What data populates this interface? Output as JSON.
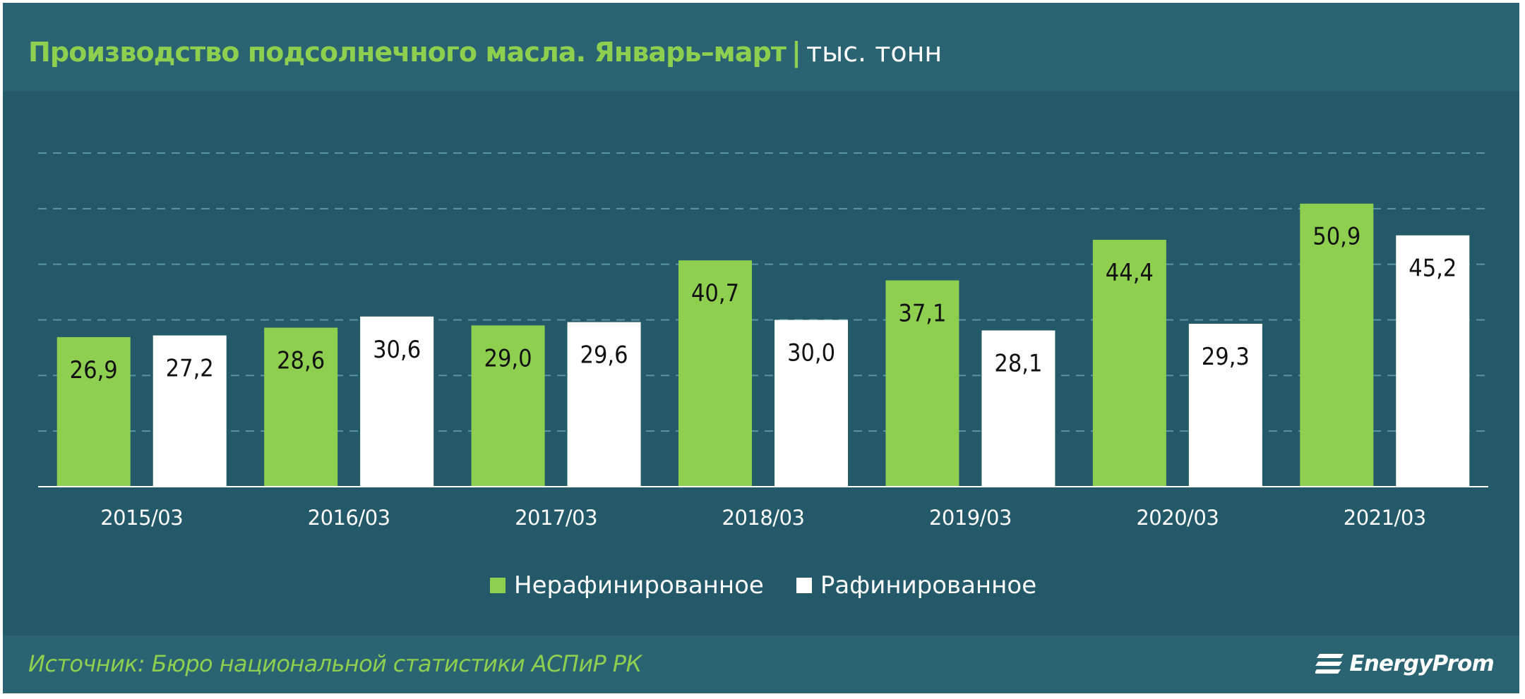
{
  "title": "Производство подсолнечного масла. Январь–март",
  "title_separator": "|",
  "unit": "тыс. тонн",
  "source": "Источник: Бюро национальной статистики АСПиР РК",
  "brand": "EnergyProm",
  "colors": {
    "background": "#235968",
    "header_band": "#2a6473",
    "title_accent": "#8fcf4f",
    "unrefined": "#8fcf4f",
    "refined": "#ffffff",
    "grid": "#5a95a3"
  },
  "chart_data": {
    "type": "bar",
    "categories": [
      "2015/03",
      "2016/03",
      "2017/03",
      "2018/03",
      "2019/03",
      "2020/03",
      "2021/03"
    ],
    "series": [
      {
        "name": "Нерафинированное",
        "color": "#8fcf4f",
        "values": [
          26.9,
          28.6,
          29.0,
          40.7,
          37.1,
          44.4,
          50.9
        ],
        "labels": [
          "26,9",
          "28,6",
          "29,0",
          "40,7",
          "37,1",
          "44,4",
          "50,9"
        ]
      },
      {
        "name": "Рафинированное",
        "color": "#ffffff",
        "values": [
          27.2,
          30.6,
          29.6,
          30.0,
          28.1,
          29.3,
          45.2
        ],
        "labels": [
          "27,2",
          "30,6",
          "29,6",
          "30,0",
          "28,1",
          "29,3",
          "45,2"
        ]
      }
    ],
    "ylim": [
      0,
      60
    ],
    "grid": true,
    "legend_position": "bottom-center",
    "labels_inside_bars": true
  }
}
